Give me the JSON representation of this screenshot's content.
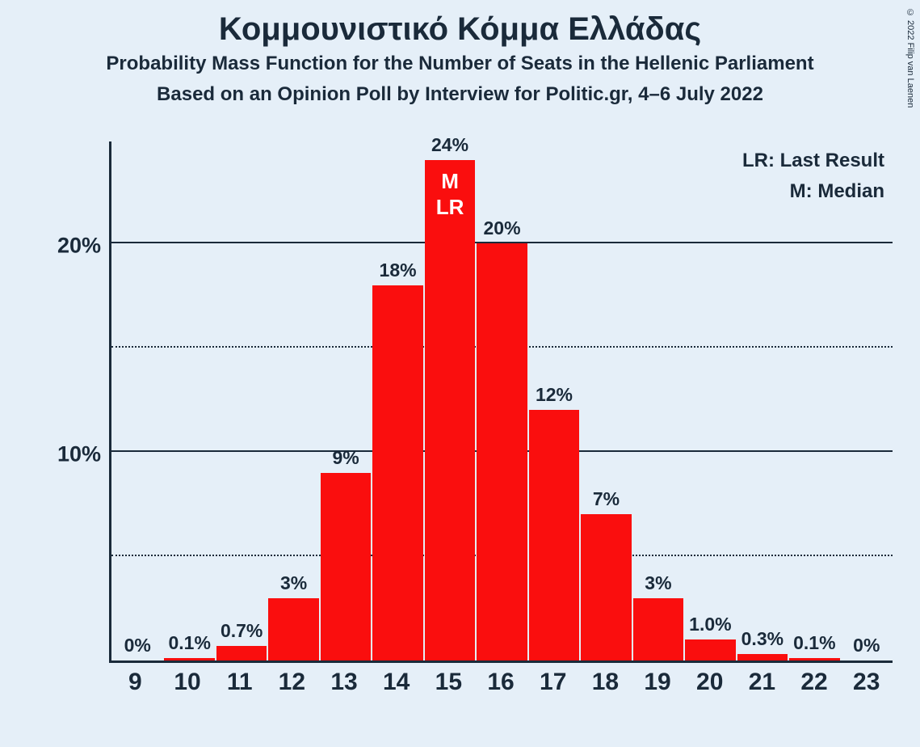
{
  "copyright": "© 2022 Filip van Laenen",
  "title": "Κομμουνιστικό Κόμμα Ελλάδας",
  "subtitle1": "Probability Mass Function for the Number of Seats in the Hellenic Parliament",
  "subtitle2": "Based on an Opinion Poll by Interview for Politic.gr, 4–6 July 2022",
  "legend": {
    "lr": "LR: Last Result",
    "m": "M: Median"
  },
  "chart": {
    "type": "bar",
    "background_color": "#e5eff8",
    "bar_color": "#fa0e0e",
    "axis_color": "#1a2a3a",
    "text_color": "#1a2a3a",
    "annot_text_color": "#ffffff",
    "ylim": [
      0,
      25
    ],
    "y_major_ticks": [
      10,
      20
    ],
    "y_minor_ticks": [
      5,
      15
    ],
    "y_tick_labels": {
      "10": "10%",
      "20": "20%"
    },
    "title_fontsize": 40,
    "subtitle_fontsize": 24,
    "ylabel_fontsize": 27,
    "barlabel_fontsize": 23,
    "xlabel_fontsize": 30,
    "annot_fontsize": 26,
    "legend_fontsize": 24,
    "categories": [
      "9",
      "10",
      "11",
      "12",
      "13",
      "14",
      "15",
      "16",
      "17",
      "18",
      "19",
      "20",
      "21",
      "22",
      "23"
    ],
    "values": [
      0,
      0.1,
      0.7,
      3,
      9,
      18,
      24,
      20,
      12,
      7,
      3,
      1.0,
      0.3,
      0.1,
      0
    ],
    "value_labels": [
      "0%",
      "0.1%",
      "0.7%",
      "3%",
      "9%",
      "18%",
      "24%",
      "20%",
      "12%",
      "7%",
      "3%",
      "1.0%",
      "0.3%",
      "0.1%",
      "0%"
    ],
    "median_index": 6,
    "last_result_index": 6,
    "annot_lines": [
      "M",
      "LR"
    ]
  }
}
